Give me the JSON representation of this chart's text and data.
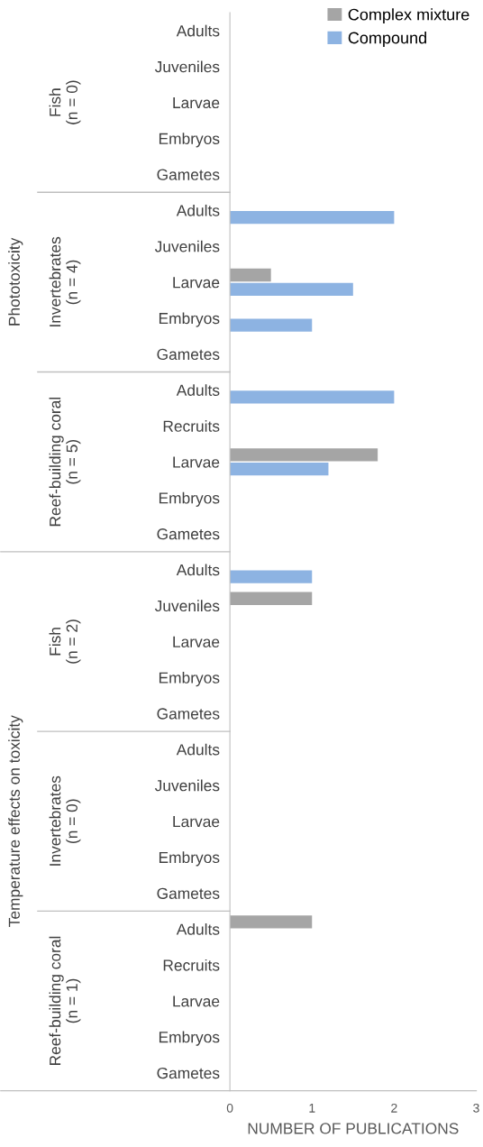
{
  "chart_data": {
    "type": "bar",
    "orientation": "horizontal",
    "xlabel": "NUMBER OF PUBLICATIONS",
    "categories": [
      "Adults",
      "Juveniles",
      "Larvae",
      "Embryos",
      "Gametes",
      "Adults",
      "Juveniles",
      "Larvae",
      "Embryos",
      "Gametes",
      "Adults",
      "Recruits",
      "Larvae",
      "Embryos",
      "Gametes",
      "Adults",
      "Juveniles",
      "Larvae",
      "Embryos",
      "Gametes",
      "Adults",
      "Juveniles",
      "Larvae",
      "Embryos",
      "Gametes",
      "Adults",
      "Recruits",
      "Larvae",
      "Embryos",
      "Gametes"
    ],
    "series": [
      {
        "name": "Complex mixture",
        "color": "#a5a5a5",
        "values": [
          null,
          null,
          null,
          null,
          null,
          null,
          null,
          0.5,
          null,
          null,
          null,
          null,
          1.8,
          null,
          null,
          null,
          1,
          null,
          null,
          null,
          null,
          null,
          null,
          null,
          null,
          1,
          null,
          null,
          null,
          null
        ]
      },
      {
        "name": "Compound",
        "color": "#8db3e2",
        "values": [
          null,
          null,
          null,
          null,
          null,
          2,
          null,
          1.5,
          1,
          null,
          2,
          null,
          1.2,
          null,
          null,
          1,
          null,
          null,
          null,
          null,
          null,
          null,
          null,
          null,
          null,
          null,
          null,
          null,
          null,
          null
        ]
      }
    ],
    "annotations": [
      "Fish\n(n = 0)",
      "Invertebrates\n(n = 4)",
      "Reef-building coral\n(n = 5)",
      "Fish\n(n = 2)",
      "Invertebrates\n(n = 0)",
      "Reef-building coral\n(n = 1)",
      "Phototoxicity",
      "Temperature effects on toxicity"
    ],
    "xlim": [
      0,
      3
    ],
    "xticks": [
      0,
      1,
      2,
      3
    ],
    "grid": false,
    "legend": "top right"
  }
}
